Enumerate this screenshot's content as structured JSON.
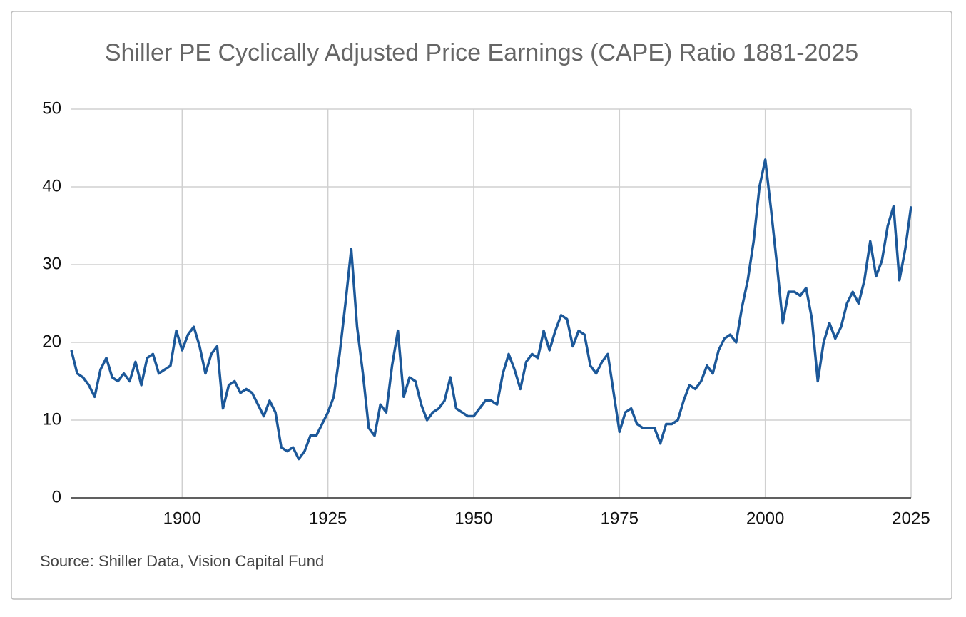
{
  "chart_data": {
    "type": "line",
    "title": "Shiller PE Cyclically Adjusted Price Earnings (CAPE) Ratio 1881-2025",
    "source": "Source: Shiller Data, Vision Capital Fund",
    "color": "#1c5899",
    "grid": true,
    "xlim": [
      1881,
      2025
    ],
    "xticks": [
      1900,
      1925,
      1950,
      1975,
      2000,
      2025
    ],
    "ylim": [
      0,
      50
    ],
    "yticks": [
      0,
      10,
      20,
      30,
      40,
      50
    ],
    "x": [
      1881,
      1882,
      1883,
      1884,
      1885,
      1886,
      1887,
      1888,
      1889,
      1890,
      1891,
      1892,
      1893,
      1894,
      1895,
      1896,
      1897,
      1898,
      1899,
      1900,
      1901,
      1902,
      1903,
      1904,
      1905,
      1906,
      1907,
      1908,
      1909,
      1910,
      1911,
      1912,
      1913,
      1914,
      1915,
      1916,
      1917,
      1918,
      1919,
      1920,
      1921,
      1922,
      1923,
      1924,
      1925,
      1926,
      1927,
      1928,
      1929,
      1930,
      1931,
      1932,
      1933,
      1934,
      1935,
      1936,
      1937,
      1938,
      1939,
      1940,
      1941,
      1942,
      1943,
      1944,
      1945,
      1946,
      1947,
      1948,
      1949,
      1950,
      1951,
      1952,
      1953,
      1954,
      1955,
      1956,
      1957,
      1958,
      1959,
      1960,
      1961,
      1962,
      1963,
      1964,
      1965,
      1966,
      1967,
      1968,
      1969,
      1970,
      1971,
      1972,
      1973,
      1974,
      1975,
      1976,
      1977,
      1978,
      1979,
      1980,
      1981,
      1982,
      1983,
      1984,
      1985,
      1986,
      1987,
      1988,
      1989,
      1990,
      1991,
      1992,
      1993,
      1994,
      1995,
      1996,
      1997,
      1998,
      1999,
      2000,
      2001,
      2002,
      2003,
      2004,
      2005,
      2006,
      2007,
      2008,
      2009,
      2010,
      2011,
      2012,
      2013,
      2014,
      2015,
      2016,
      2017,
      2018,
      2019,
      2020,
      2021,
      2022,
      2023,
      2024,
      2025
    ],
    "values": [
      19,
      16,
      15.5,
      14.5,
      13,
      16.5,
      18,
      15.5,
      15,
      16,
      15,
      17.5,
      14.5,
      18,
      18.5,
      16,
      16.5,
      17,
      21.5,
      19,
      21,
      22,
      19.5,
      16,
      18.5,
      19.5,
      11.5,
      14.5,
      15,
      13.5,
      14,
      13.5,
      12,
      10.5,
      12.5,
      11,
      6.5,
      6,
      6.5,
      5,
      6,
      8,
      8,
      9.5,
      11,
      13,
      18.5,
      25,
      32,
      22,
      16,
      9,
      8,
      12,
      11,
      17,
      21.5,
      13,
      15.5,
      15,
      12,
      10,
      11,
      11.5,
      12.5,
      15.5,
      11.5,
      11,
      10.5,
      10.5,
      11.5,
      12.5,
      12.5,
      12,
      16,
      18.5,
      16.5,
      14,
      17.5,
      18.5,
      18,
      21.5,
      19,
      21.5,
      23.5,
      23,
      19.5,
      21.5,
      21,
      17,
      16,
      17.5,
      18.5,
      13.5,
      8.5,
      11,
      11.5,
      9.5,
      9,
      9,
      9,
      7,
      9.5,
      9.5,
      10,
      12.5,
      14.5,
      14,
      15,
      17,
      16,
      19,
      20.5,
      21,
      20,
      24.5,
      28,
      33,
      40,
      43.5,
      37,
      30,
      22.5,
      26.5,
      26.5,
      26,
      27,
      23,
      15,
      20,
      22.5,
      20.5,
      22,
      25,
      26.5,
      25,
      28,
      33,
      28.5,
      30.5,
      35,
      37.5,
      28,
      32,
      37.5
    ]
  }
}
